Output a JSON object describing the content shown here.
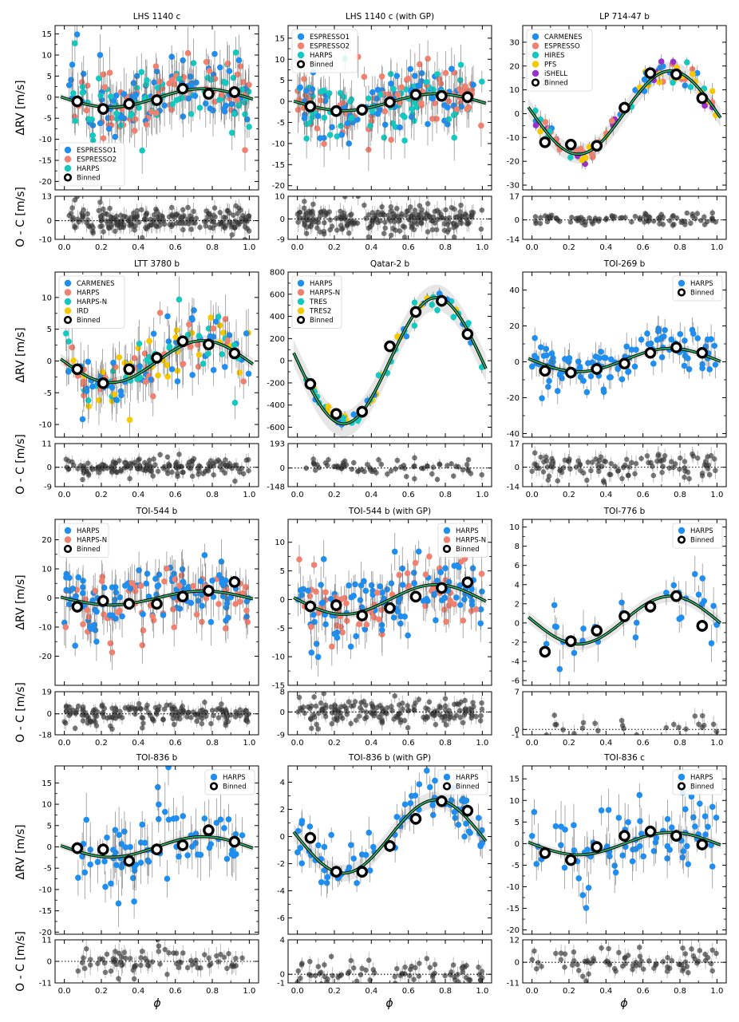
{
  "figure": {
    "ylabel_top": "ΔRV [m/s]",
    "ylabel_bottom": "O - C [m/s]",
    "xlabel": "ϕ",
    "xticks": [
      "0.0",
      "0.2",
      "0.4",
      "0.6",
      "0.8",
      "1.0"
    ],
    "colors": {
      "blue": "#1f8ef1",
      "salmon": "#f08070",
      "teal": "#14c8c0",
      "gold": "#f5c800",
      "purple": "#9b30c8",
      "model_green": "#2fbf72",
      "binned": "#000000"
    }
  },
  "chart_data": [
    {
      "type": "scatter",
      "title": "LHS 1140 c",
      "legend_position": "bottom-left",
      "legend": [
        {
          "label": "ESPRESSO1",
          "color": "#1f8ef1"
        },
        {
          "label": "ESPRESSO2",
          "color": "#f08070"
        },
        {
          "label": "HARPS",
          "color": "#14c8c0"
        },
        {
          "label": "Binned",
          "binned": true
        }
      ],
      "ylim": [
        -22,
        17
      ],
      "yticks": [
        -20,
        -15,
        -10,
        -5,
        0,
        5,
        10,
        15
      ],
      "model": {
        "amp": 2.2,
        "offset": -0.2
      },
      "binned": [
        [
          0.07,
          -1
        ],
        [
          0.21,
          -2.8
        ],
        [
          0.35,
          -1.6
        ],
        [
          0.5,
          -0.7
        ],
        [
          0.64,
          2
        ],
        [
          0.78,
          0.8
        ],
        [
          0.92,
          1.2
        ]
      ],
      "resid_ylim": [
        -10,
        13
      ],
      "resid_ticks": [
        "13",
        "0",
        "-10"
      ],
      "resid_vals": [
        13,
        0,
        -10
      ],
      "n_points": 220,
      "scatter": 4.5,
      "seed": 11,
      "colors": [
        "#14c8c0",
        "#1f8ef1",
        "#f08070"
      ]
    },
    {
      "type": "scatter",
      "title": "LHS 1140 c (with GP)",
      "legend_position": "top-left",
      "legend": [
        {
          "label": "ESPRESSO1",
          "color": "#1f8ef1"
        },
        {
          "label": "ESPRESSO2",
          "color": "#f08070"
        },
        {
          "label": "HARPS",
          "color": "#14c8c0"
        },
        {
          "label": "Binned",
          "binned": true
        }
      ],
      "ylim": [
        -21,
        18
      ],
      "yticks": [
        -20,
        -15,
        -10,
        -5,
        0,
        5,
        10,
        15
      ],
      "model": {
        "amp": 2.0,
        "offset": -0.2
      },
      "binned": [
        [
          0.07,
          -1.2
        ],
        [
          0.21,
          -2.3
        ],
        [
          0.35,
          -2
        ],
        [
          0.5,
          -0.2
        ],
        [
          0.64,
          1.6
        ],
        [
          0.78,
          1.3
        ],
        [
          0.92,
          1
        ]
      ],
      "resid_ylim": [
        -9,
        10
      ],
      "resid_ticks": [
        "10",
        "0",
        "-9"
      ],
      "resid_vals": [
        10,
        0,
        -9
      ],
      "n_points": 220,
      "scatter": 4.0,
      "seed": 23,
      "colors": [
        "#14c8c0",
        "#1f8ef1",
        "#f08070"
      ]
    },
    {
      "type": "scatter",
      "title": "LP 714-47 b",
      "legend_position": "top-left",
      "legend": [
        {
          "label": "CARMENES",
          "color": "#1f8ef1"
        },
        {
          "label": "ESPRESSO",
          "color": "#f08070"
        },
        {
          "label": "HIRES",
          "color": "#14c8c0"
        },
        {
          "label": "PFS",
          "color": "#f5c800"
        },
        {
          "label": "iSHELL",
          "color": "#9b30c8"
        },
        {
          "label": "Binned",
          "binned": true
        }
      ],
      "ylim": [
        -32,
        37
      ],
      "yticks": [
        -30,
        -20,
        -10,
        0,
        10,
        20,
        30
      ],
      "model": {
        "amp": 17.5,
        "offset": 0.5
      },
      "binned": [
        [
          0.07,
          -12
        ],
        [
          0.21,
          -13
        ],
        [
          0.35,
          -13.5
        ],
        [
          0.5,
          2.5
        ],
        [
          0.64,
          17
        ],
        [
          0.78,
          16.5
        ],
        [
          0.92,
          6.5
        ]
      ],
      "resid_ylim": [
        -14,
        17
      ],
      "resid_ticks": [
        "17",
        "0",
        "-14"
      ],
      "resid_vals": [
        17,
        0,
        -14
      ],
      "n_points": 90,
      "scatter": 3.0,
      "seed": 37,
      "colors": [
        "#14c8c0",
        "#1f8ef1",
        "#f08070",
        "#9b30c8",
        "#f5c800"
      ]
    },
    {
      "type": "scatter",
      "title": "LTT 3780 b",
      "legend_position": "top-left",
      "legend": [
        {
          "label": "CARMENES",
          "color": "#1f8ef1"
        },
        {
          "label": "HARPS",
          "color": "#f08070"
        },
        {
          "label": "HARPS-N",
          "color": "#14c8c0"
        },
        {
          "label": "IRD",
          "color": "#f5c800"
        },
        {
          "label": "Binned",
          "binned": true
        }
      ],
      "ylim": [
        -12,
        14
      ],
      "yticks": [
        -10,
        -5,
        0,
        5,
        10
      ],
      "model": {
        "amp": 3.3,
        "offset": -0.1
      },
      "binned": [
        [
          0.07,
          -1.3
        ],
        [
          0.21,
          -3.5
        ],
        [
          0.35,
          -1.3
        ],
        [
          0.5,
          0.5
        ],
        [
          0.64,
          3.1
        ],
        [
          0.78,
          2.6
        ],
        [
          0.92,
          1.2
        ]
      ],
      "resid_ylim": [
        -9,
        11
      ],
      "resid_ticks": [
        "11",
        "0",
        "-9"
      ],
      "resid_vals": [
        11,
        0,
        -9
      ],
      "n_points": 160,
      "scatter": 2.8,
      "seed": 41,
      "colors": [
        "#1f8ef1",
        "#f08070",
        "#14c8c0",
        "#f5c800"
      ]
    },
    {
      "type": "scatter",
      "title": "Qatar-2 b",
      "legend_position": "top-left",
      "legend": [
        {
          "label": "HARPS",
          "color": "#1f8ef1"
        },
        {
          "label": "HARPS-N",
          "color": "#f08070"
        },
        {
          "label": "TRES",
          "color": "#14c8c0"
        },
        {
          "label": "TRES2",
          "color": "#f5c800"
        },
        {
          "label": "Binned",
          "binned": true
        }
      ],
      "ylim": [
        -690,
        800
      ],
      "yticks": [
        -600,
        -400,
        -200,
        0,
        200,
        400,
        600,
        800
      ],
      "model": {
        "amp": 570,
        "offset": 0
      },
      "binned": [
        [
          0.07,
          -210
        ],
        [
          0.21,
          -480
        ],
        [
          0.35,
          -460
        ],
        [
          0.5,
          130
        ],
        [
          0.64,
          440
        ],
        [
          0.78,
          540
        ],
        [
          0.92,
          240
        ]
      ],
      "resid_ylim": [
        -148,
        193
      ],
      "resid_ticks": [
        "193",
        "0",
        "-148"
      ],
      "resid_vals": [
        193,
        0,
        -148
      ],
      "n_points": 70,
      "scatter": 40,
      "seed": 53,
      "colors": [
        "#14c8c0",
        "#14c8c0",
        "#f5c800",
        "#1f8ef1"
      ]
    },
    {
      "type": "scatter",
      "title": "TOI-269 b",
      "legend_position": "top-right",
      "legend": [
        {
          "label": "HARPS",
          "color": "#1f8ef1"
        },
        {
          "label": "Binned",
          "binned": true
        }
      ],
      "ylim": [
        -42,
        50
      ],
      "yticks": [
        -40,
        -20,
        0,
        20,
        40
      ],
      "model": {
        "amp": 6.5,
        "offset": 1.0
      },
      "binned": [
        [
          0.07,
          -5
        ],
        [
          0.21,
          -6
        ],
        [
          0.35,
          -4
        ],
        [
          0.5,
          -1
        ],
        [
          0.64,
          5
        ],
        [
          0.78,
          8
        ],
        [
          0.92,
          5
        ]
      ],
      "resid_ylim": [
        -14,
        17
      ],
      "resid_ticks": [
        "17",
        "0",
        "-14"
      ],
      "resid_vals": [
        17,
        0,
        -14
      ],
      "n_points": 110,
      "scatter": 6.0,
      "seed": 67,
      "colors": [
        "#1f8ef1"
      ]
    },
    {
      "type": "scatter",
      "title": "TOI-544 b",
      "legend_position": "top-left",
      "legend": [
        {
          "label": "HARPS",
          "color": "#1f8ef1"
        },
        {
          "label": "HARPS-N",
          "color": "#f08070"
        },
        {
          "label": "Binned",
          "binned": true
        }
      ],
      "ylim": [
        -30,
        27
      ],
      "yticks": [
        -20,
        -10,
        0,
        10,
        20
      ],
      "model": {
        "amp": 2.4,
        "offset": 0
      },
      "binned": [
        [
          0.07,
          -3
        ],
        [
          0.21,
          -1
        ],
        [
          0.35,
          -2
        ],
        [
          0.5,
          -2
        ],
        [
          0.64,
          0.5
        ],
        [
          0.78,
          2.5
        ],
        [
          0.92,
          5.5
        ]
      ],
      "resid_ylim": [
        -18,
        19
      ],
      "resid_ticks": [
        "19",
        "0",
        "-18"
      ],
      "resid_vals": [
        19,
        0,
        -18
      ],
      "n_points": 170,
      "scatter": 6.0,
      "seed": 71,
      "colors": [
        "#1f8ef1",
        "#1f8ef1",
        "#f08070"
      ]
    },
    {
      "type": "scatter",
      "title": "TOI-544 b (with GP)",
      "legend_position": "top-right",
      "legend": [
        {
          "label": "HARPS",
          "color": "#1f8ef1"
        },
        {
          "label": "HARPS-N",
          "color": "#f08070"
        },
        {
          "label": "Binned",
          "binned": true
        }
      ],
      "ylim": [
        -15,
        14
      ],
      "yticks": [
        -15,
        -10,
        -5,
        0,
        5,
        10
      ],
      "model": {
        "amp": 2.6,
        "offset": 0
      },
      "binned": [
        [
          0.07,
          -1.2
        ],
        [
          0.21,
          -1
        ],
        [
          0.35,
          -2.8
        ],
        [
          0.5,
          -1.5
        ],
        [
          0.64,
          0.5
        ],
        [
          0.78,
          2
        ],
        [
          0.92,
          3
        ]
      ],
      "resid_ylim": [
        -9,
        8
      ],
      "resid_ticks": [
        "8",
        "0",
        "-9"
      ],
      "resid_vals": [
        8,
        0,
        -9
      ],
      "n_points": 170,
      "scatter": 3.0,
      "seed": 83,
      "colors": [
        "#1f8ef1",
        "#1f8ef1",
        "#f08070"
      ]
    },
    {
      "type": "scatter",
      "title": "TOI-776 b",
      "legend_position": "top-right",
      "legend": [
        {
          "label": "HARPS",
          "color": "#1f8ef1"
        },
        {
          "label": "Binned",
          "binned": true
        }
      ],
      "ylim": [
        -6.5,
        10.8
      ],
      "yticks": [
        -6,
        -4,
        -2,
        0,
        2,
        4,
        6,
        8,
        10
      ],
      "model": {
        "amp": 2.5,
        "offset": 0.3
      },
      "binned": [
        [
          0.07,
          -3
        ],
        [
          0.21,
          -1.9
        ],
        [
          0.35,
          -0.8
        ],
        [
          0.5,
          0.7
        ],
        [
          0.64,
          1.7
        ],
        [
          0.78,
          2.8
        ],
        [
          0.92,
          -0.3
        ]
      ],
      "resid_ylim": [
        -1,
        7
      ],
      "resid_ticks": [
        "7",
        "0",
        "-1"
      ],
      "resid_vals": [
        7,
        0,
        -1
      ],
      "n_points": 30,
      "scatter": 1.6,
      "seed": 97,
      "colors": [
        "#1f8ef1"
      ]
    },
    {
      "type": "scatter",
      "title": "TOI-836 b",
      "legend_position": "top-right",
      "legend": [
        {
          "label": "HARPS",
          "color": "#1f8ef1"
        },
        {
          "label": "Binned",
          "binned": true
        }
      ],
      "ylim": [
        -20.5,
        19
      ],
      "yticks": [
        -20,
        -15,
        -10,
        -5,
        0,
        5,
        10,
        15
      ],
      "model": {
        "amp": 2.4,
        "offset": 0
      },
      "binned": [
        [
          0.07,
          -0.3
        ],
        [
          0.21,
          -0.6
        ],
        [
          0.35,
          -3.3
        ],
        [
          0.5,
          -0.6
        ],
        [
          0.64,
          0.4
        ],
        [
          0.78,
          3.9
        ],
        [
          0.92,
          1.2
        ]
      ],
      "resid_ylim": [
        -11,
        11
      ],
      "resid_ticks": [
        "11",
        "0",
        "-11"
      ],
      "resid_vals": [
        11,
        0,
        -11
      ],
      "n_points": 80,
      "scatter": 5.0,
      "seed": 101,
      "colors": [
        "#1f8ef1"
      ]
    },
    {
      "type": "scatter",
      "title": "TOI-836 b (with GP)",
      "legend_position": "top-right",
      "legend": [
        {
          "label": "HARPS",
          "color": "#1f8ef1"
        },
        {
          "label": "Binned",
          "binned": true
        }
      ],
      "ylim": [
        -7.2,
        5.2
      ],
      "yticks": [
        -6,
        -4,
        -2,
        0,
        2,
        4
      ],
      "model": {
        "amp": 2.7,
        "offset": 0
      },
      "binned": [
        [
          0.07,
          -0.1
        ],
        [
          0.21,
          -2.6
        ],
        [
          0.35,
          -2.6
        ],
        [
          0.5,
          -0.7
        ],
        [
          0.64,
          1.3
        ],
        [
          0.78,
          2.6
        ],
        [
          0.92,
          1.9
        ]
      ],
      "resid_ylim": [
        -1,
        4
      ],
      "resid_ticks": [
        "4",
        "0",
        "-1"
      ],
      "resid_vals": [
        4,
        0,
        -1
      ],
      "n_points": 80,
      "scatter": 0.9,
      "seed": 113,
      "colors": [
        "#1f8ef1"
      ]
    },
    {
      "type": "scatter",
      "title": "TOI-836 c",
      "legend_position": "top-right",
      "legend": [
        {
          "label": "HARPS",
          "color": "#1f8ef1"
        },
        {
          "label": "Binned",
          "binned": true
        }
      ],
      "ylim": [
        -21,
        18
      ],
      "yticks": [
        -20,
        -15,
        -10,
        -5,
        0,
        5,
        10,
        15
      ],
      "model": {
        "amp": 2.6,
        "offset": 0
      },
      "binned": [
        [
          0.07,
          -2.2
        ],
        [
          0.21,
          -3.8
        ],
        [
          0.35,
          -0.8
        ],
        [
          0.5,
          1.8
        ],
        [
          0.64,
          2.8
        ],
        [
          0.78,
          1.8
        ],
        [
          0.92,
          -0.2
        ]
      ],
      "resid_ylim": [
        -11,
        12
      ],
      "resid_ticks": [
        "12",
        "0",
        "-11"
      ],
      "resid_vals": [
        12,
        0,
        -11
      ],
      "n_points": 80,
      "scatter": 4.5,
      "seed": 127,
      "colors": [
        "#1f8ef1"
      ]
    }
  ]
}
